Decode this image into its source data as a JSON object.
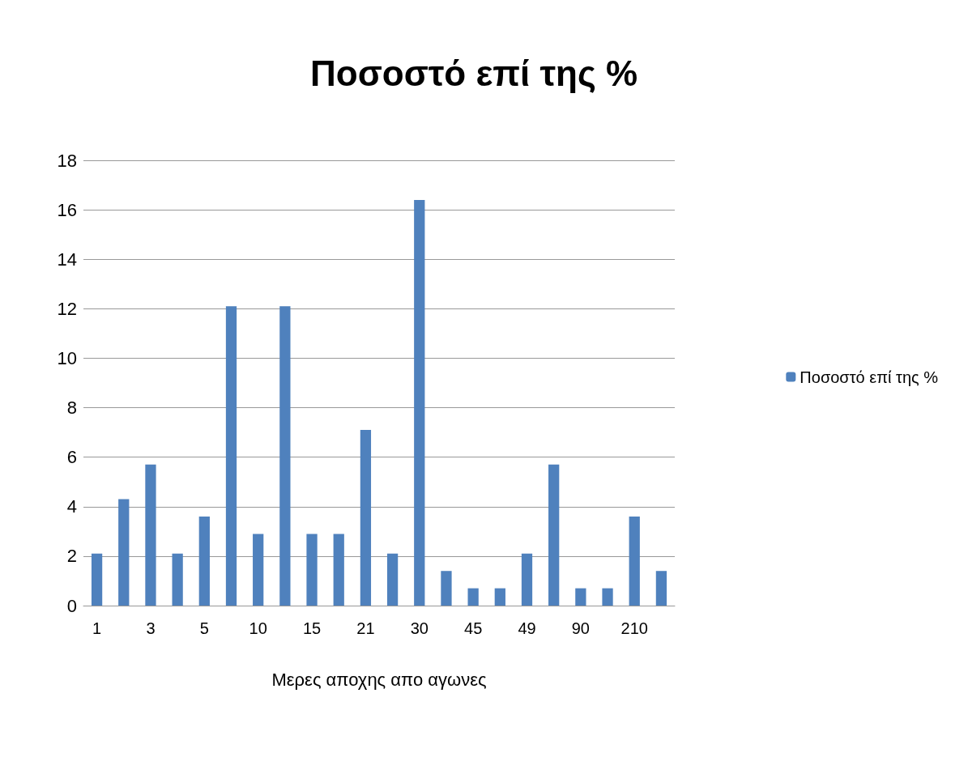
{
  "chart_data": {
    "type": "bar",
    "title": "Ποσοστό επί της %",
    "xlabel": "Μερες αποχης απο αγωνες",
    "categories": [
      "1",
      null,
      "3",
      null,
      "5",
      null,
      "10",
      null,
      "15",
      null,
      "21",
      null,
      "30",
      null,
      "45",
      null,
      "49",
      null,
      "90",
      null,
      "210",
      null
    ],
    "series": [
      {
        "name": "Ποσοστό επί της %",
        "color": "#4f81bd",
        "values": [
          2.1,
          4.3,
          5.7,
          2.1,
          3.6,
          12.1,
          2.9,
          12.1,
          2.9,
          2.9,
          7.1,
          2.1,
          16.4,
          1.4,
          0.7,
          0.7,
          2.1,
          5.7,
          0.7,
          0.7,
          3.6,
          1.4
        ]
      }
    ],
    "ylim": [
      0,
      18
    ],
    "yticks": [
      0,
      2,
      4,
      6,
      8,
      10,
      12,
      14,
      16,
      18
    ],
    "grid": "y",
    "legend": "right"
  }
}
